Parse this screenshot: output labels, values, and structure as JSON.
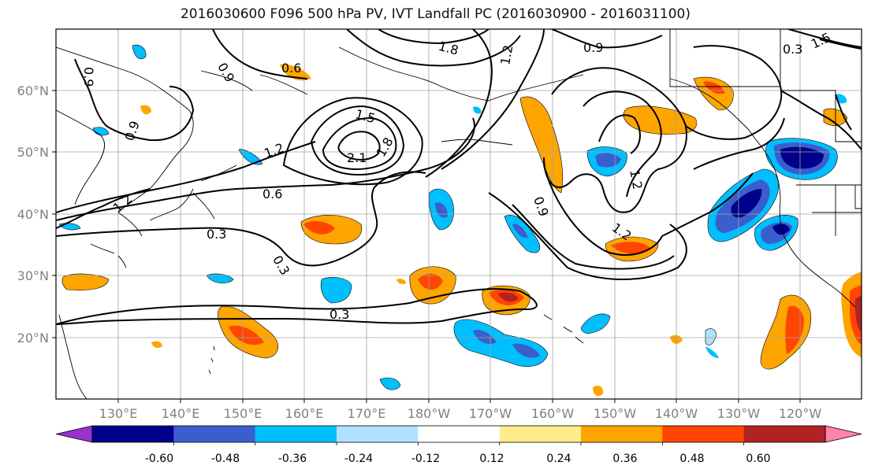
{
  "title": "2016030600 F096 500 hPa PV, IVT Landfall PC (2016030900 - 2016031100)",
  "lat_labels": [
    "60°N",
    "50°N",
    "40°N",
    "30°N",
    "20°N"
  ],
  "lon_labels": [
    "130°E",
    "140°E",
    "150°E",
    "160°E",
    "170°E",
    "180°W",
    "170°W",
    "160°W",
    "150°W",
    "140°W",
    "130°W",
    "120°W"
  ],
  "contour_labels": [
    "0.3",
    "0.3",
    "0.3",
    "0.6",
    "0.6",
    "0.9",
    "0.9",
    "0.9",
    "0.9",
    "0.9",
    "1.2",
    "1.2",
    "1.2",
    "1.2",
    "1.2",
    "1.5",
    "1.5",
    "1.8",
    "1.8",
    "2.1",
    "0.3"
  ],
  "colorbar": {
    "tick_labels": [
      "-0.60",
      "-0.48",
      "-0.36",
      "-0.24",
      "-0.12",
      "0.12",
      "0.24",
      "0.36",
      "0.48",
      "0.60"
    ],
    "colors": [
      "#9932cc",
      "#00008b",
      "#3a5fcd",
      "#00bfff",
      "#b0e2ff",
      "#ffffff",
      "#ffec8b",
      "#ffa500",
      "#ff4500",
      "#b22222",
      "#ff82ab"
    ]
  }
}
